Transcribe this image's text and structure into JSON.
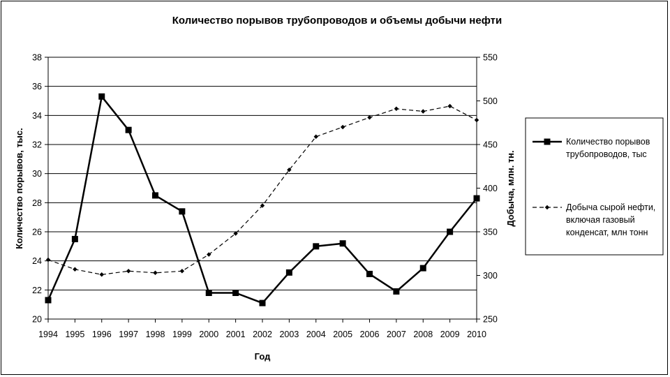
{
  "chart_data": {
    "type": "line",
    "title": "Количество порывов трубопроводов и объемы добычи нефти",
    "xlabel": "Год",
    "ylabel_left": "Количество порывов, тыс.",
    "ylabel_right": "Добыча, млн. тн.",
    "categories": [
      "1994",
      "1995",
      "1996",
      "1997",
      "1998",
      "1999",
      "2000",
      "2001",
      "2002",
      "2003",
      "2004",
      "2005",
      "2006",
      "2007",
      "2008",
      "2009",
      "2010"
    ],
    "ylim_left": [
      20,
      38
    ],
    "yticks_left": [
      "20",
      "22",
      "24",
      "26",
      "28",
      "30",
      "32",
      "34",
      "36",
      "38"
    ],
    "ylim_right": [
      250,
      550
    ],
    "yticks_right": [
      "250",
      "300",
      "350",
      "400",
      "450",
      "500",
      "550"
    ],
    "grid": true,
    "legend_position": "right",
    "series": [
      {
        "name": "Количество порывов трубопроводов, тыс",
        "legend_lines": [
          "Количество порывов",
          "трубопроводов, тыс"
        ],
        "axis": "left",
        "style": "solid",
        "marker": "square",
        "values": [
          21.3,
          25.5,
          35.3,
          33.0,
          28.5,
          27.4,
          21.8,
          21.8,
          21.1,
          23.2,
          25.0,
          25.2,
          23.1,
          21.9,
          23.5,
          26.0,
          28.3
        ]
      },
      {
        "name": "Добыча сырой нефти, включая газовый конденсат, млн тонн",
        "legend_lines": [
          "Добыча сырой нефти,",
          "включая газовый",
          "конденсат, млн тонн"
        ],
        "axis": "right",
        "style": "dashed",
        "marker": "diamond",
        "values": [
          318,
          307,
          301,
          305,
          303,
          305,
          324,
          348,
          380,
          421,
          459,
          470,
          481,
          491,
          488,
          494,
          478
        ]
      }
    ]
  }
}
